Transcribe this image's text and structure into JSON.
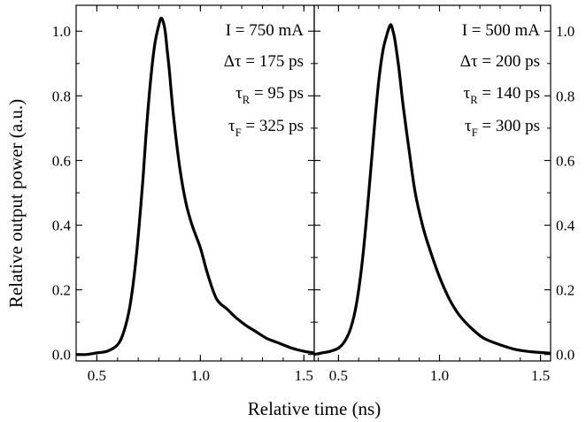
{
  "chart_data": [
    {
      "type": "line",
      "panel": "left",
      "xlabel": "Relative time (ns)",
      "ylabel": "Relative output power (a.u.)",
      "xlim": [
        0.4,
        1.55
      ],
      "ylim": [
        -0.02,
        1.08
      ],
      "xticks": [
        0.5,
        1.0,
        1.5
      ],
      "xtick_labels": [
        "0.5",
        "1.0",
        "1.5"
      ],
      "yticks": [
        0.0,
        0.2,
        0.4,
        0.6,
        0.8,
        1.0
      ],
      "ytick_labels": [
        "0.0",
        "0.2",
        "0.4",
        "0.6",
        "0.8",
        "1.0"
      ],
      "annotations": [
        {
          "main": "I = 750 mA"
        },
        {
          "main": "Δτ = 175 ps"
        },
        {
          "pre": "τ",
          "sub": "R",
          "post": " = 95 ps"
        },
        {
          "pre": "τ",
          "sub": "F",
          "post": " = 325 ps"
        }
      ],
      "x": [
        0.4,
        0.45,
        0.5,
        0.55,
        0.6,
        0.63,
        0.66,
        0.69,
        0.72,
        0.74,
        0.76,
        0.78,
        0.8,
        0.81,
        0.82,
        0.83,
        0.84,
        0.85,
        0.87,
        0.9,
        0.93,
        0.96,
        1.0,
        1.03,
        1.06,
        1.08,
        1.1,
        1.13,
        1.17,
        1.22,
        1.27,
        1.32,
        1.38,
        1.44,
        1.5,
        1.55
      ],
      "y": [
        0.0,
        0.0,
        0.005,
        0.01,
        0.03,
        0.07,
        0.15,
        0.3,
        0.52,
        0.7,
        0.85,
        0.96,
        1.02,
        1.04,
        1.03,
        1.0,
        0.94,
        0.88,
        0.74,
        0.58,
        0.47,
        0.4,
        0.33,
        0.26,
        0.2,
        0.17,
        0.155,
        0.14,
        0.115,
        0.09,
        0.07,
        0.05,
        0.035,
        0.02,
        0.01,
        0.005
      ]
    },
    {
      "type": "line",
      "panel": "right",
      "xlim": [
        0.38,
        1.55
      ],
      "ylim": [
        -0.02,
        1.08
      ],
      "xticks": [
        0.5,
        1.0,
        1.5
      ],
      "xtick_labels": [
        "0.5",
        "1.0",
        "1.5"
      ],
      "yticks": [
        0.0,
        0.2,
        0.4,
        0.6,
        0.8,
        1.0
      ],
      "ytick_labels": [
        "0.0",
        "0.2",
        "0.4",
        "0.6",
        "0.8",
        "1.0"
      ],
      "annotations": [
        {
          "main": "I = 500 mA"
        },
        {
          "main": "Δτ = 200 ps"
        },
        {
          "pre": "τ",
          "sub": "R",
          "post": " = 140 ps"
        },
        {
          "pre": "τ",
          "sub": "F",
          "post": " = 300 ps"
        }
      ],
      "x": [
        0.38,
        0.42,
        0.46,
        0.5,
        0.53,
        0.56,
        0.59,
        0.62,
        0.65,
        0.68,
        0.7,
        0.72,
        0.74,
        0.75,
        0.76,
        0.77,
        0.78,
        0.8,
        0.82,
        0.85,
        0.88,
        0.92,
        0.96,
        1.0,
        1.05,
        1.1,
        1.16,
        1.22,
        1.3,
        1.38,
        1.46,
        1.55
      ],
      "y": [
        0.0,
        0.005,
        0.01,
        0.02,
        0.04,
        0.08,
        0.16,
        0.3,
        0.5,
        0.72,
        0.85,
        0.94,
        0.99,
        1.01,
        1.02,
        1.0,
        0.97,
        0.88,
        0.77,
        0.63,
        0.5,
        0.39,
        0.31,
        0.24,
        0.17,
        0.12,
        0.08,
        0.05,
        0.03,
        0.015,
        0.008,
        0.004
      ]
    }
  ]
}
